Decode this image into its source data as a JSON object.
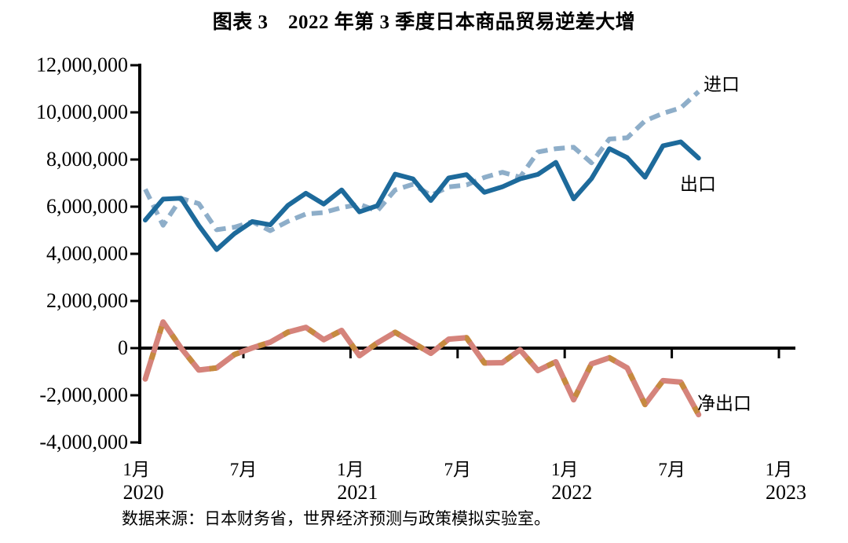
{
  "header": {
    "title": "图表 3　2022 年第 3 季度日本商品贸易逆差大增"
  },
  "footer": {
    "source_note": "数据来源：日本财务省，世界经济预测与政策模拟实验室。"
  },
  "colors": {
    "background": "#FFFFFF",
    "axis": "#000000",
    "text": "#000000",
    "exports_line": "#1D6A9B",
    "imports_line": "#8EAEC9",
    "net_line_base": "#D5837B",
    "net_line_dash": "#C68A3F"
  },
  "chart_data": {
    "type": "line",
    "title": "图表 3　2022 年第 3 季度日本商品贸易逆差大增",
    "x": [
      "2020-01",
      "2020-02",
      "2020-03",
      "2020-04",
      "2020-05",
      "2020-06",
      "2020-07",
      "2020-08",
      "2020-09",
      "2020-10",
      "2020-11",
      "2020-12",
      "2021-01",
      "2021-02",
      "2021-03",
      "2021-04",
      "2021-05",
      "2021-06",
      "2021-07",
      "2021-08",
      "2021-09",
      "2021-10",
      "2021-11",
      "2021-12",
      "2022-01",
      "2022-02",
      "2022-03",
      "2022-04",
      "2022-05",
      "2022-06",
      "2022-07",
      "2022-08"
    ],
    "series": [
      {
        "name": "出口",
        "style": "solid",
        "color": "#1D6A9B",
        "values": [
          5430000,
          6320000,
          6360000,
          5200000,
          4180000,
          4860000,
          5370000,
          5230000,
          6060000,
          6570000,
          6110000,
          6710000,
          5780000,
          6040000,
          7380000,
          7180000,
          6260000,
          7220000,
          7360000,
          6610000,
          6840000,
          7180000,
          7370000,
          7880000,
          6330000,
          7190000,
          8460000,
          8080000,
          7250000,
          8580000,
          8750000,
          8060000
        ]
      },
      {
        "name": "进口",
        "style": "dashed",
        "color": "#8EAEC9",
        "values": [
          6740000,
          5210000,
          6350000,
          6130000,
          5020000,
          5130000,
          5360000,
          4980000,
          5380000,
          5690000,
          5750000,
          5960000,
          6100000,
          5820000,
          6710000,
          6950000,
          6480000,
          6840000,
          6920000,
          7240000,
          7460000,
          7250000,
          8320000,
          8460000,
          8520000,
          7860000,
          8870000,
          8920000,
          9640000,
          9960000,
          10190000,
          10880000
        ]
      },
      {
        "name": "净出口",
        "style": "two-tone-dashed",
        "color": "#D5837B",
        "dash_color": "#C68A3F",
        "values": [
          -1310000,
          1110000,
          10000,
          -930000,
          -840000,
          -270000,
          10000,
          250000,
          680000,
          880000,
          360000,
          750000,
          -320000,
          220000,
          670000,
          230000,
          -220000,
          380000,
          440000,
          -630000,
          -620000,
          -70000,
          -950000,
          -580000,
          -2190000,
          -670000,
          -410000,
          -840000,
          -2390000,
          -1380000,
          -1440000,
          -2820000
        ]
      }
    ],
    "ylim": [
      -4000000,
      12000000
    ],
    "y_tick_step": 2000000,
    "y_ticks": [
      {
        "value": 12000000,
        "label": "12,000,000"
      },
      {
        "value": 10000000,
        "label": "10,000,000"
      },
      {
        "value": 8000000,
        "label": "8,000,000"
      },
      {
        "value": 6000000,
        "label": "6,000,000"
      },
      {
        "value": 4000000,
        "label": "4,000,000"
      },
      {
        "value": 2000000,
        "label": "2,000,000"
      },
      {
        "value": 0,
        "label": "0"
      },
      {
        "value": -2000000,
        "label": "-2,000,000"
      },
      {
        "value": -4000000,
        "label": "-4,000,000"
      }
    ],
    "x_ticks": [
      {
        "month_index": 0,
        "month_label": "1月",
        "year_label": "2020"
      },
      {
        "month_index": 6,
        "month_label": "7月",
        "year_label": ""
      },
      {
        "month_index": 12,
        "month_label": "1月",
        "year_label": "2021"
      },
      {
        "month_index": 18,
        "month_label": "7月",
        "year_label": ""
      },
      {
        "month_index": 24,
        "month_label": "1月",
        "year_label": "2022"
      },
      {
        "month_index": 30,
        "month_label": "7月",
        "year_label": ""
      },
      {
        "month_index": 36,
        "month_label": "1月",
        "year_label": "2023"
      }
    ],
    "grid": false,
    "legend_position": "inline-labels-at-line-ends"
  }
}
